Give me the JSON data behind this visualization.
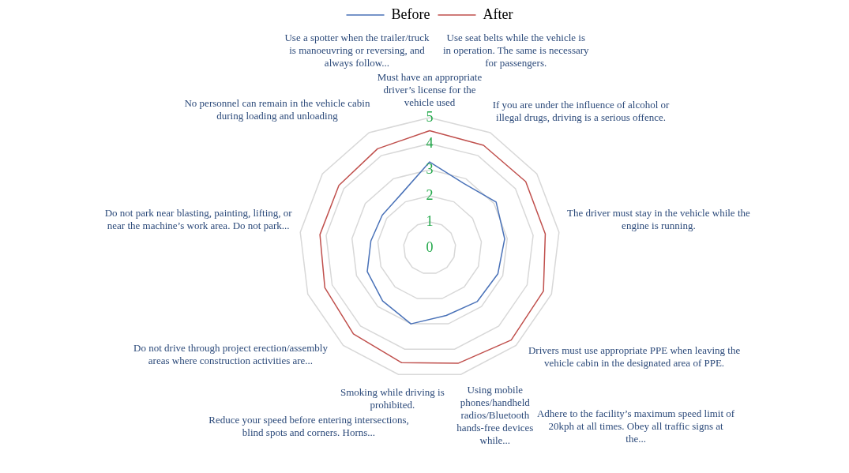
{
  "chart_data": {
    "type": "radar",
    "categories": [
      "Must have an appropriate driver’s license for the vehicle used",
      "Use seat belts while the vehicle is in operation. The same is necessary for passengers.",
      "If you are under the influence of alcohol or illegal drugs, driving is a serious offence.",
      "The driver must stay in the vehicle while the engine is running.",
      "Drivers must use appropriate PPE when leaving the vehicle cabin in the designated area of PPE.",
      "Adhere to the facility’s maximum speed limit of 20kph at all times. Obey all traffic signs at the...",
      "Using mobile phones/handheld radios/Bluetooth hands-free devices while...",
      "Smoking while driving is prohibited.",
      "Reduce your speed before entering intersections, blind spots and corners. Horns...",
      "Do not drive through project erection/assembly areas where construction activities are...",
      "Do not park near blasting, painting, lifting, or near the machine’s work area. Do not park...",
      "No personnel can remain in the vehicle cabin during loading and unloading",
      "Use a spotter when the trailer/truck is manoeuvring or reversing, and always follow..."
    ],
    "series": [
      {
        "name": "Before",
        "color": "#4a72b8",
        "values": [
          3.3,
          2.8,
          3.1,
          2.9,
          2.8,
          2.75,
          2.67,
          3.0,
          2.72,
          2.56,
          2.27,
          2.21,
          2.34
        ]
      },
      {
        "name": "After",
        "color": "#c0504d",
        "values": [
          4.5,
          4.45,
          4.48,
          4.47,
          4.67,
          4.72,
          4.56,
          4.53,
          4.41,
          4.3,
          4.24,
          4.23,
          4.3
        ]
      }
    ],
    "ylim": [
      0,
      5
    ],
    "yticks": [
      0,
      1,
      2,
      3,
      4,
      5
    ],
    "grid": true,
    "legend": "top",
    "marker": "none",
    "line_style": "solid"
  }
}
